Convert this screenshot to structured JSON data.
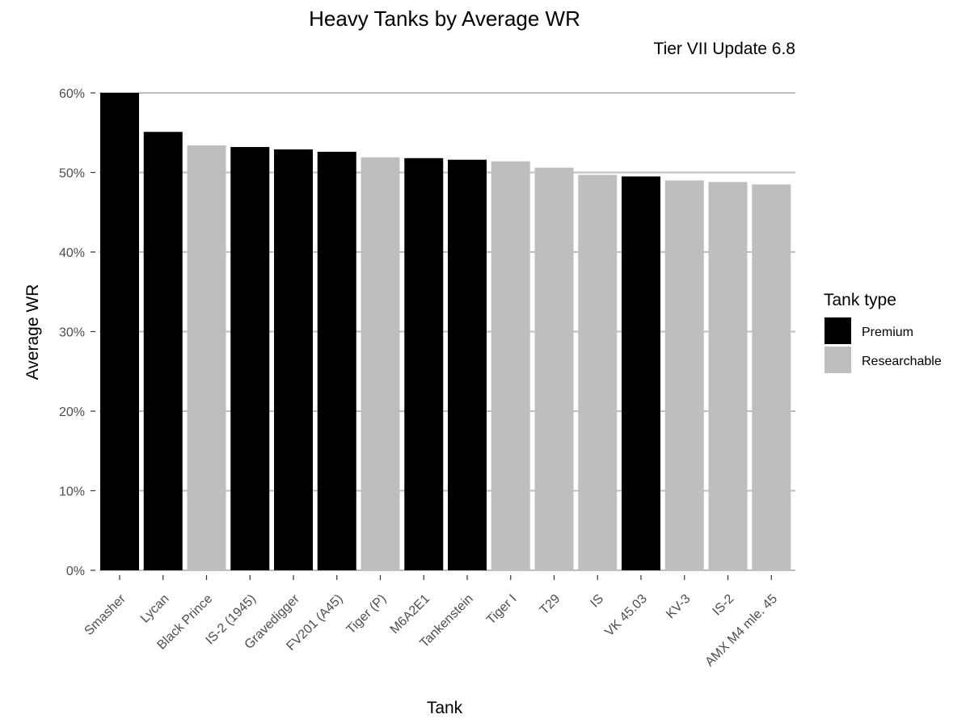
{
  "chart_data": {
    "type": "bar",
    "title": "Heavy Tanks by Average WR",
    "subtitle": "Tier VII Update 6.8",
    "xlabel": "Tank",
    "ylabel": "Average WR",
    "ylim": [
      0,
      60
    ],
    "yticks": [
      "0%",
      "10%",
      "20%",
      "30%",
      "40%",
      "50%",
      "60%"
    ],
    "yticks_values": [
      0,
      10,
      20,
      30,
      40,
      50,
      60
    ],
    "grid": "horizontal major",
    "legend": {
      "title": "Tank type",
      "position": "right",
      "entries": [
        {
          "label": "Premium",
          "color": "#000000"
        },
        {
          "label": "Researchable",
          "color": "#bebebe"
        }
      ]
    },
    "categories": [
      "Smasher",
      "Lycan",
      "Black Prince",
      "IS-2 (1945)",
      "Gravedigger",
      "FV201 (A45)",
      "Tiger (P)",
      "M6A2E1",
      "Tankenstein",
      "Tiger I",
      "T29",
      "IS",
      "VK 45.03",
      "KV-3",
      "IS-2",
      "AMX M4 mle. 45"
    ],
    "values": [
      60.0,
      55.1,
      53.4,
      53.2,
      52.9,
      52.6,
      51.9,
      51.8,
      51.6,
      51.4,
      50.6,
      49.7,
      49.5,
      49.0,
      48.8,
      48.5
    ],
    "tank_type": [
      "Premium",
      "Premium",
      "Researchable",
      "Premium",
      "Premium",
      "Premium",
      "Researchable",
      "Premium",
      "Premium",
      "Researchable",
      "Researchable",
      "Researchable",
      "Premium",
      "Researchable",
      "Researchable",
      "Researchable"
    ]
  }
}
